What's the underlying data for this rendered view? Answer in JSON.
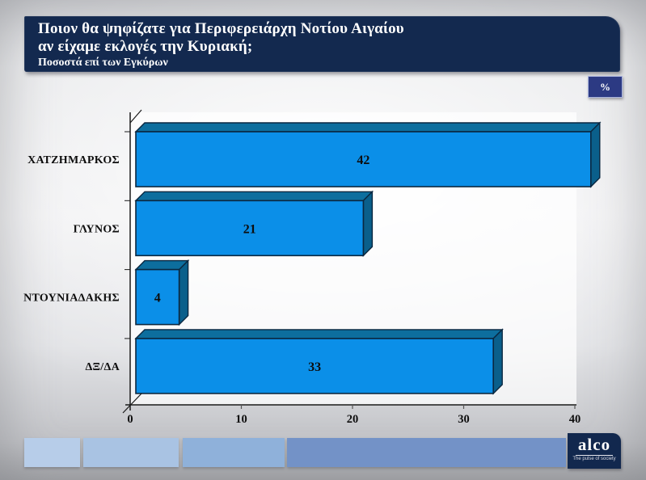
{
  "header": {
    "line1": "Ποιον θα ψηφίζατε για Περιφερειάρχη Νοτίου Αιγαίου",
    "line2": "αν είχαμε εκλογές την Κυριακή;",
    "subtitle": "Ποσοστά επί των Εγκύρων"
  },
  "percent_badge": {
    "label": "%"
  },
  "chart_data": {
    "type": "bar",
    "orientation": "horizontal",
    "style": "3d",
    "title": "Ποιον θα ψηφίζατε για Περιφερειάρχη Νοτίου Αιγαίου αν είχαμε εκλογές την Κυριακή;",
    "subtitle": "Ποσοστά επί των Εγκύρων",
    "unit": "%",
    "categories": [
      "ΧΑΤΖΗΜΑΡΚΟΣ",
      "ΓΛΥΝΟΣ",
      "ΝΤΟΥΝΙΑΔΑΚΗΣ",
      "ΔΞ/ΔΑ"
    ],
    "values": [
      42,
      21,
      4,
      33
    ],
    "xlim": [
      0,
      40
    ],
    "x_ticks": [
      0,
      10,
      20,
      30,
      40
    ],
    "grid": false,
    "legend": "none",
    "bar_color": "#0b8fe8",
    "bar_top_color": "#0d6e9e",
    "bar_side_color": "#0a5f8b",
    "bar_outline": "#0a2740",
    "axis_color": "#1a1a1a"
  },
  "footer": {
    "segment_colors": [
      "#b7cde9",
      "#a9c3e3",
      "#8fb1da",
      "#7392c7"
    ],
    "logo_text": "alco",
    "logo_tagline": "The pulse of society"
  },
  "colors": {
    "header_bg": "#13294f",
    "badge_bg": "#2c3a83",
    "logo_bg": "#12284e"
  }
}
